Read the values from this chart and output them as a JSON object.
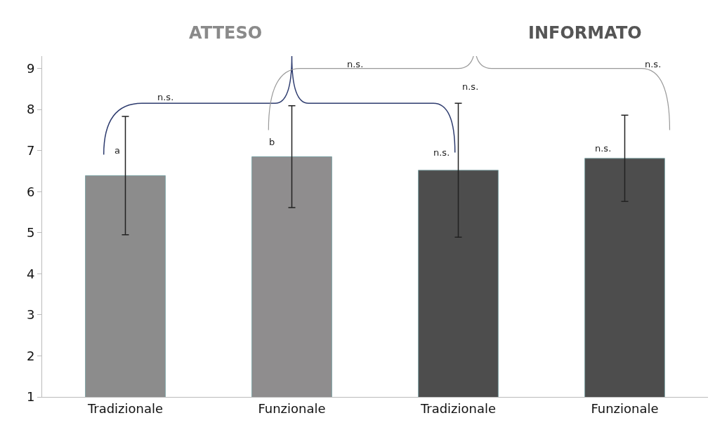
{
  "chart_data": {
    "type": "bar",
    "categories": [
      "Tradizionale",
      "Funzionale",
      "Tradizionale",
      "Funzionale"
    ],
    "values": [
      6.39,
      6.85,
      6.52,
      6.81
    ],
    "colors": [
      "#8c8c8c",
      "#8f8d8e",
      "#4d4d4d",
      "#4d4d4d"
    ],
    "errors": [
      1.44,
      1.24,
      1.63,
      1.05
    ],
    "ylim": [
      1,
      9.3
    ],
    "yticks": [
      1,
      2,
      3,
      4,
      5,
      6,
      7,
      8,
      9
    ],
    "grid": false,
    "annotations": [
      "ATTESO",
      "INFORMATO",
      "n.s.",
      "n.s.",
      "n.s.",
      "n.s.",
      "a",
      "b",
      "n.s.",
      "n.s."
    ]
  }
}
